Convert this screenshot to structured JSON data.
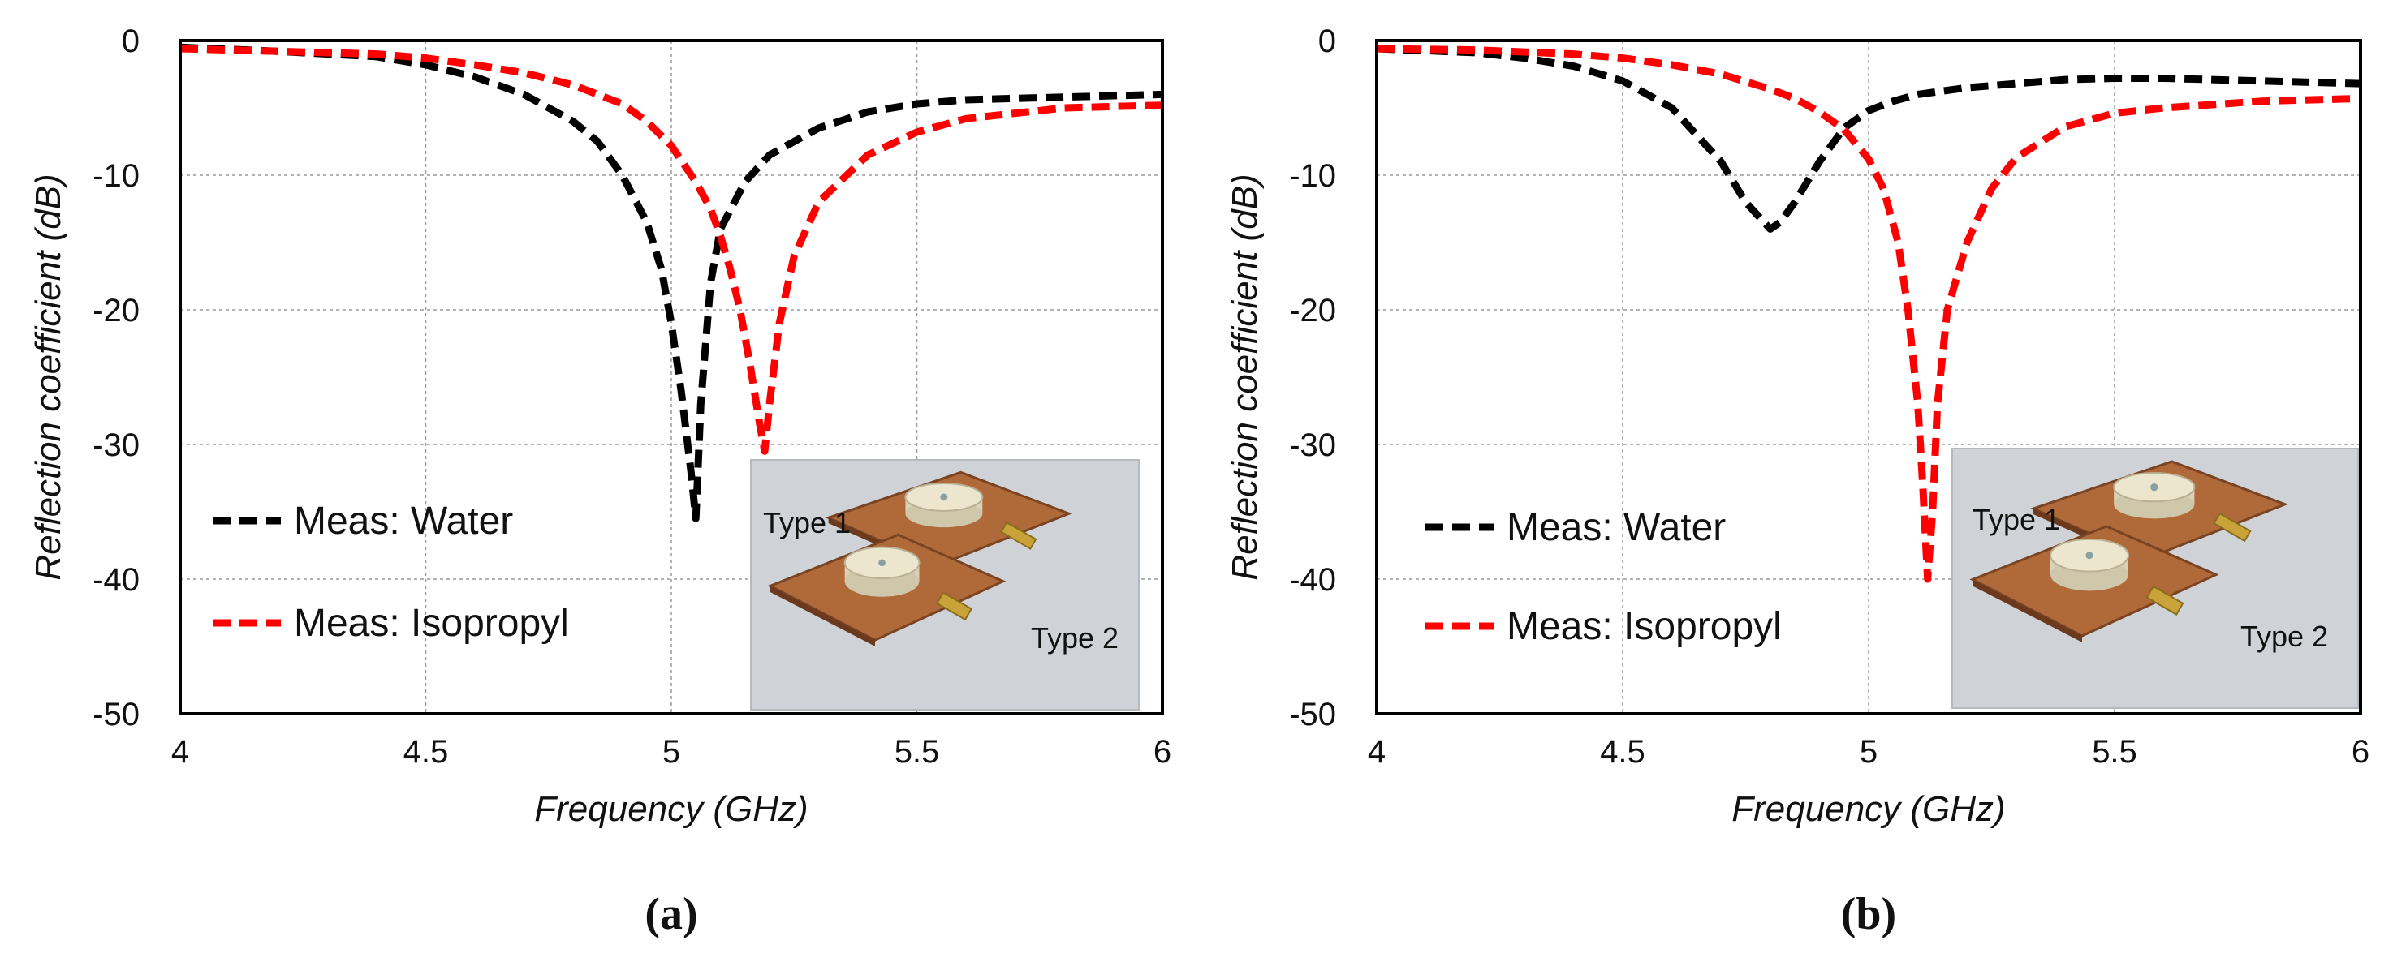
{
  "chart_data": [
    {
      "type": "line",
      "panel_label": "(a)",
      "xlabel": "Frequency (GHz)",
      "ylabel": "Reflection coefficient (dB)",
      "xlim": [
        4,
        6
      ],
      "ylim": [
        -50,
        0
      ],
      "xticks": [
        "4",
        "4.5",
        "5",
        "5.5",
        "6"
      ],
      "yticks": [
        "0",
        "-10",
        "-20",
        "-30",
        "-40",
        "-50"
      ],
      "grid": true,
      "legend_position": "bottom-left",
      "inset": {
        "labels": [
          "Type 1",
          "Type 2"
        ]
      },
      "series": [
        {
          "name": "Meas: Water",
          "color": "#000000",
          "style": "dashed",
          "x": [
            4.0,
            4.2,
            4.4,
            4.5,
            4.6,
            4.7,
            4.8,
            4.85,
            4.9,
            4.95,
            4.98,
            5.0,
            5.02,
            5.04,
            5.05,
            5.06,
            5.08,
            5.1,
            5.15,
            5.2,
            5.3,
            5.4,
            5.5,
            5.6,
            5.8,
            6.0
          ],
          "y": [
            -0.5,
            -0.8,
            -1.2,
            -1.8,
            -2.7,
            -4.0,
            -6.0,
            -7.5,
            -10.0,
            -13.5,
            -17.0,
            -21.0,
            -26.0,
            -32.0,
            -35.5,
            -27.0,
            -18.0,
            -14.0,
            -10.5,
            -8.5,
            -6.5,
            -5.3,
            -4.7,
            -4.4,
            -4.2,
            -4.0
          ]
        },
        {
          "name": "Meas: Isopropyl",
          "color": "#ff0000",
          "style": "dashed",
          "x": [
            4.0,
            4.2,
            4.4,
            4.5,
            4.6,
            4.7,
            4.8,
            4.9,
            4.95,
            5.0,
            5.05,
            5.08,
            5.1,
            5.12,
            5.14,
            5.16,
            5.18,
            5.19,
            5.2,
            5.22,
            5.25,
            5.3,
            5.4,
            5.5,
            5.6,
            5.8,
            6.0
          ],
          "y": [
            -0.6,
            -0.8,
            -1.0,
            -1.3,
            -1.8,
            -2.4,
            -3.3,
            -4.7,
            -6.0,
            -7.8,
            -10.5,
            -12.5,
            -14.5,
            -17.0,
            -20.0,
            -24.0,
            -28.5,
            -30.5,
            -27.0,
            -21.0,
            -16.0,
            -12.0,
            -8.5,
            -6.8,
            -5.8,
            -5.0,
            -4.8
          ]
        }
      ]
    },
    {
      "type": "line",
      "panel_label": "(b)",
      "xlabel": "Frequency (GHz)",
      "ylabel": "Reflection coefficient (dB)",
      "xlim": [
        4,
        6
      ],
      "ylim": [
        -50,
        0
      ],
      "xticks": [
        "4",
        "4.5",
        "5",
        "5.5",
        "6"
      ],
      "yticks": [
        "0",
        "-10",
        "-20",
        "-30",
        "-40",
        "-50"
      ],
      "grid": true,
      "legend_position": "left",
      "inset": {
        "labels": [
          "Type 1",
          "Type 2"
        ]
      },
      "series": [
        {
          "name": "Meas: Water",
          "color": "#000000",
          "style": "dashed",
          "x": [
            4.0,
            4.2,
            4.3,
            4.4,
            4.5,
            4.6,
            4.7,
            4.75,
            4.8,
            4.82,
            4.85,
            4.9,
            4.95,
            5.0,
            5.05,
            5.1,
            5.2,
            5.3,
            5.4,
            5.5,
            5.6,
            5.8,
            6.0
          ],
          "y": [
            -0.6,
            -0.9,
            -1.3,
            -1.9,
            -3.0,
            -5.0,
            -9.0,
            -12.0,
            -14.0,
            -13.5,
            -12.0,
            -9.0,
            -6.5,
            -5.2,
            -4.5,
            -4.0,
            -3.5,
            -3.2,
            -2.9,
            -2.8,
            -2.8,
            -3.0,
            -3.2
          ]
        },
        {
          "name": "Meas: Isopropyl",
          "color": "#ff0000",
          "style": "dashed",
          "x": [
            4.0,
            4.2,
            4.4,
            4.5,
            4.6,
            4.7,
            4.8,
            4.85,
            4.9,
            4.95,
            5.0,
            5.03,
            5.06,
            5.08,
            5.1,
            5.11,
            5.12,
            5.13,
            5.14,
            5.16,
            5.2,
            5.25,
            5.3,
            5.4,
            5.5,
            5.6,
            5.8,
            6.0
          ],
          "y": [
            -0.6,
            -0.7,
            -1.0,
            -1.3,
            -1.8,
            -2.5,
            -3.6,
            -4.3,
            -5.3,
            -6.6,
            -8.8,
            -11.0,
            -15.0,
            -20.0,
            -27.0,
            -33.0,
            -40.0,
            -35.0,
            -27.0,
            -20.0,
            -15.0,
            -11.0,
            -8.7,
            -6.4,
            -5.4,
            -5.0,
            -4.5,
            -4.3
          ]
        }
      ]
    }
  ]
}
